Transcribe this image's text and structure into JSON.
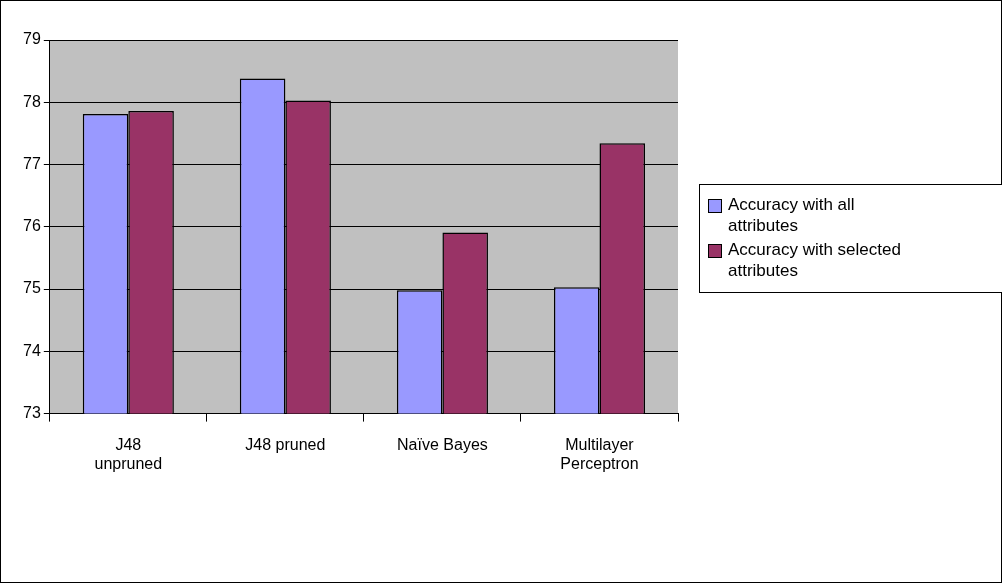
{
  "chart_data": {
    "type": "bar",
    "categories": [
      "J48 unpruned",
      "J48 pruned",
      "Naïve Bayes",
      "Multilayer Perceptron"
    ],
    "series": [
      {
        "name": "Accuracy with all attributes",
        "color": "#9999ff",
        "values": [
          77.81,
          78.38,
          74.98,
          75.03
        ]
      },
      {
        "name": "Accuracy with selected attributes",
        "color": "#993366",
        "values": [
          77.86,
          78.03,
          75.91,
          77.34
        ]
      }
    ],
    "ylim": [
      73,
      79
    ],
    "yticks": [
      73,
      74,
      75,
      76,
      77,
      78,
      79
    ],
    "grid": "y",
    "legend": "right"
  }
}
